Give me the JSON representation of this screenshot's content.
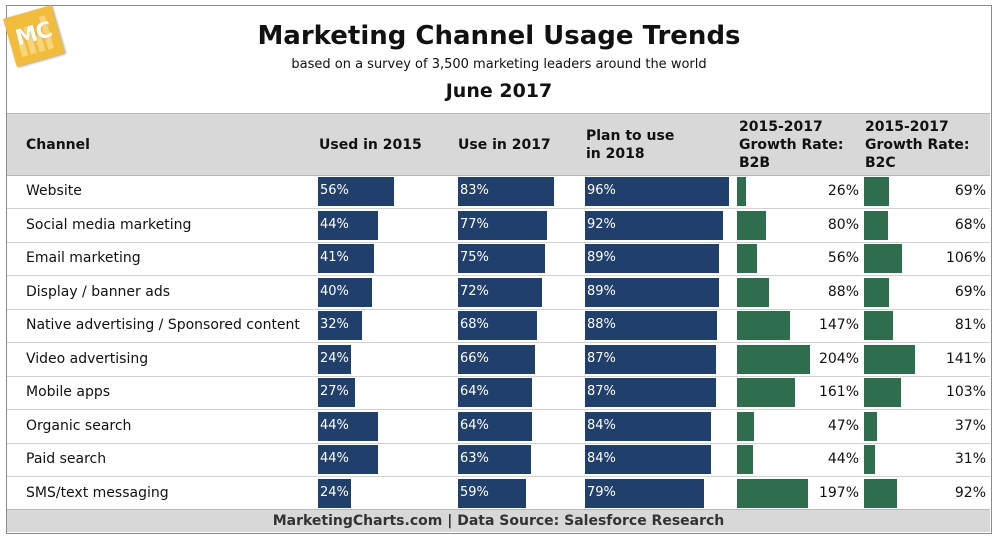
{
  "header": {
    "logo_text": "MC",
    "title": "Marketing Channel Usage Trends",
    "subtitle": "based on a survey of 3,500 marketing leaders around the world",
    "date": "June 2017"
  },
  "footer": {
    "source": "MarketingCharts.com | Data Source: Salesforce Research"
  },
  "colors": {
    "usage_bar": "#203f6b",
    "growth_bar": "#2f6e4c",
    "header_bg": "#d8d8d8",
    "logo": "#f2bc3d"
  },
  "chart_data": {
    "type": "table",
    "title": "Marketing Channel Usage Trends",
    "subtitle": "based on a survey of 3,500 marketing leaders around the world",
    "columns": [
      {
        "key": "channel",
        "lines": [
          "Channel"
        ]
      },
      {
        "key": "used_2015",
        "lines": [
          "Used in 2015"
        ]
      },
      {
        "key": "use_2017",
        "lines": [
          "Use in 2017"
        ]
      },
      {
        "key": "plan_2018",
        "lines": [
          "Plan to use",
          "in 2018"
        ]
      },
      {
        "key": "growth_b2b",
        "lines": [
          "2015-2017",
          "Growth Rate:",
          "B2B"
        ]
      },
      {
        "key": "growth_b2c",
        "lines": [
          "2015-2017",
          "Growth Rate:",
          "B2C"
        ]
      }
    ],
    "unit": "%",
    "rows": [
      {
        "channel": "Website",
        "used_2015": 56,
        "use_2017": 83,
        "plan_2018": 96,
        "growth_b2b": 26,
        "growth_b2c": 69
      },
      {
        "channel": "Social media marketing",
        "used_2015": 44,
        "use_2017": 77,
        "plan_2018": 92,
        "growth_b2b": 80,
        "growth_b2c": 68
      },
      {
        "channel": "Email marketing",
        "used_2015": 41,
        "use_2017": 75,
        "plan_2018": 89,
        "growth_b2b": 56,
        "growth_b2c": 106
      },
      {
        "channel": "Display / banner ads",
        "used_2015": 40,
        "use_2017": 72,
        "plan_2018": 89,
        "growth_b2b": 88,
        "growth_b2c": 69
      },
      {
        "channel": "Native advertising / Sponsored content",
        "used_2015": 32,
        "use_2017": 68,
        "plan_2018": 88,
        "growth_b2b": 147,
        "growth_b2c": 81
      },
      {
        "channel": "Video advertising",
        "used_2015": 24,
        "use_2017": 66,
        "plan_2018": 87,
        "growth_b2b": 204,
        "growth_b2c": 141
      },
      {
        "channel": "Mobile apps",
        "used_2015": 27,
        "use_2017": 64,
        "plan_2018": 87,
        "growth_b2b": 161,
        "growth_b2c": 103
      },
      {
        "channel": "Organic search",
        "used_2015": 44,
        "use_2017": 64,
        "plan_2018": 84,
        "growth_b2b": 47,
        "growth_b2c": 37
      },
      {
        "channel": "Paid search",
        "used_2015": 44,
        "use_2017": 63,
        "plan_2018": 84,
        "growth_b2b": 44,
        "growth_b2c": 31
      },
      {
        "channel": "SMS/text messaging",
        "used_2015": 24,
        "use_2017": 59,
        "plan_2018": 79,
        "growth_b2b": 197,
        "growth_b2c": 92
      }
    ]
  }
}
